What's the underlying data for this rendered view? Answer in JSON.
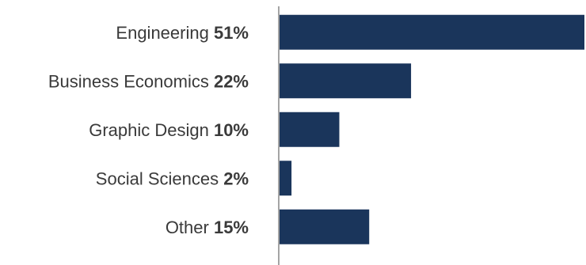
{
  "chart_data": {
    "type": "bar",
    "orientation": "horizontal",
    "categories": [
      "Engineering",
      "Business Economics",
      "Graphic Design",
      "Social Sciences",
      "Other"
    ],
    "values": [
      51,
      22,
      10,
      2,
      15
    ],
    "value_labels": [
      "51%",
      "22%",
      "10%",
      "2%",
      "15%"
    ],
    "xlim": [
      0,
      51
    ],
    "bar_color": "#1a355b",
    "axis_color": "#4a4a4a",
    "grid": false,
    "legend": "none"
  }
}
